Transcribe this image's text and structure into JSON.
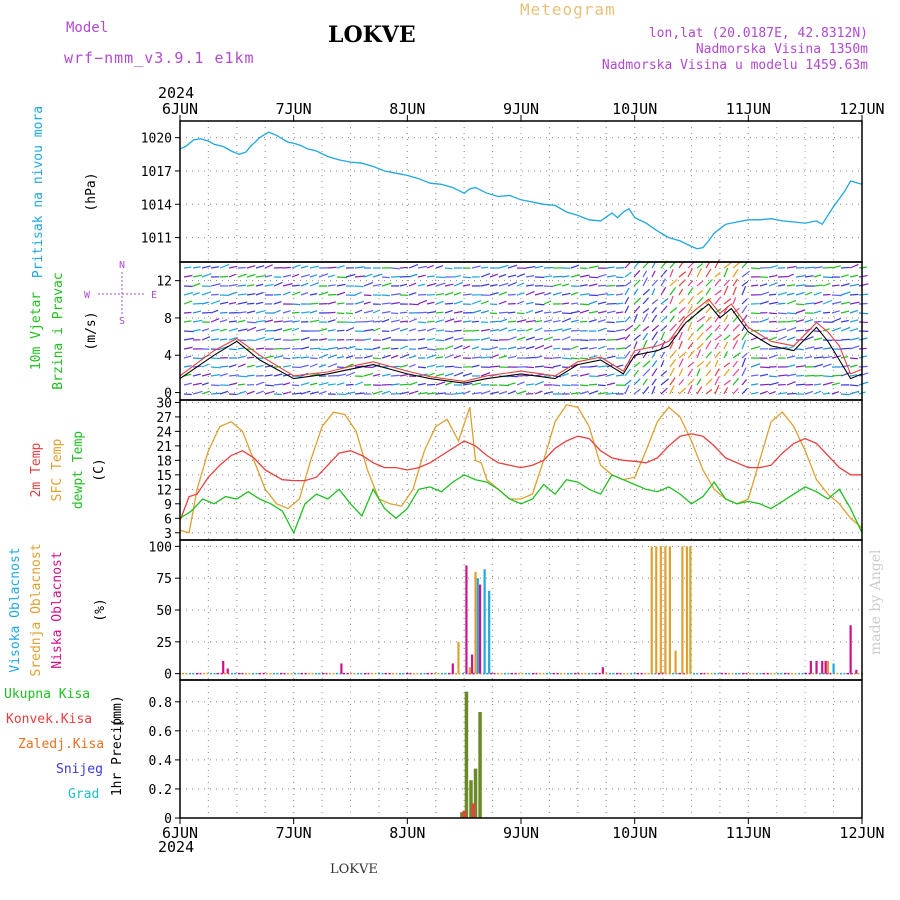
{
  "header": {
    "model_label": "Model",
    "model_name": "wrf−nmm_v3.9.1  e1km",
    "title": "LOKVE",
    "meteogram": "Meteogram",
    "lonlat": "lon,lat (20.0187E, 42.8312N)",
    "elevation": "Nadmorska Visina 1350m",
    "model_elevation": "Nadmorska Visina u modelu 1459.63m",
    "footer_title": "LOKVE",
    "watermark": "made by Angel"
  },
  "colors": {
    "pressure": "#1fa8e0",
    "t2m": "#e84040",
    "tsfc": "#e0a030",
    "dewpt": "#20c020",
    "cloud_high": "#1fa8e0",
    "cloud_mid": "#e0a030",
    "cloud_low": "#d0108a",
    "precip_total": "#6a8a28",
    "precip_conv": "#e84040",
    "magenta_text": "#b04ad0"
  },
  "time_axis": {
    "year": "2024",
    "days": [
      "6JUN",
      "7JUN",
      "8JUN",
      "9JUN",
      "10JUN",
      "11JUN",
      "12JUN"
    ]
  },
  "chart_data": [
    {
      "type": "line",
      "id": "pressure",
      "ylabel_lines": [
        "Pritisak na nivou mora"
      ],
      "unit": "(hPa)",
      "yticks": [
        1011,
        1014,
        1017,
        1020
      ],
      "ylim": [
        1008.8,
        1021.5
      ],
      "grid": true,
      "series": [
        {
          "color": "#1fa8e0",
          "x": [
            0,
            0.05,
            0.12,
            0.18,
            0.25,
            0.3,
            0.38,
            0.45,
            0.52,
            0.58,
            0.62,
            0.7,
            0.78,
            0.85,
            0.9,
            0.95,
            1.0,
            1.06,
            1.12,
            1.2,
            1.3,
            1.4,
            1.5,
            1.6,
            1.7,
            1.8,
            1.9,
            2.0,
            2.1,
            2.2,
            2.3,
            2.4,
            2.5,
            2.55,
            2.6,
            2.7,
            2.8,
            2.9,
            3.0,
            3.1,
            3.2,
            3.3,
            3.4,
            3.5,
            3.6,
            3.7,
            3.8,
            3.85,
            3.9,
            3.95,
            4.0,
            4.1,
            4.2,
            4.3,
            4.4,
            4.5,
            4.55,
            4.6,
            4.65,
            4.7,
            4.8,
            4.9,
            5.0,
            5.1,
            5.2,
            5.3,
            5.4,
            5.5,
            5.6,
            5.65,
            5.7,
            5.75,
            5.8,
            5.85,
            5.9,
            6.0
          ],
          "y": [
            1019.0,
            1019.2,
            1019.8,
            1019.9,
            1019.7,
            1019.4,
            1019.2,
            1018.8,
            1018.5,
            1018.7,
            1019.2,
            1020.0,
            1020.5,
            1020.2,
            1019.9,
            1019.6,
            1019.5,
            1019.3,
            1019.0,
            1018.8,
            1018.3,
            1018.0,
            1017.8,
            1017.7,
            1017.4,
            1017.0,
            1016.8,
            1016.6,
            1016.3,
            1015.9,
            1015.8,
            1015.5,
            1015.0,
            1015.4,
            1015.5,
            1015.0,
            1014.7,
            1014.8,
            1014.4,
            1014.2,
            1014.0,
            1013.9,
            1013.3,
            1013.0,
            1012.6,
            1012.5,
            1013.2,
            1012.8,
            1013.3,
            1013.6,
            1012.8,
            1012.3,
            1011.6,
            1011.0,
            1010.7,
            1010.2,
            1010.0,
            1010.1,
            1010.7,
            1011.4,
            1012.2,
            1012.4,
            1012.6,
            1012.6,
            1012.7,
            1012.5,
            1012.4,
            1012.3,
            1012.5,
            1012.2,
            1013.0,
            1013.8,
            1014.5,
            1015.2,
            1016.1,
            1015.8
          ]
        }
      ]
    },
    {
      "type": "line",
      "id": "wind",
      "ylabel_lines": [
        "10m Vjetar",
        "Brzina i Pravac"
      ],
      "unit": "(m/s)",
      "compass": {
        "north": "N",
        "west": "W",
        "east": "E",
        "south": "S"
      },
      "yticks": [
        0,
        4,
        8,
        12
      ],
      "ylim": [
        -0.8,
        14
      ],
      "grid": true,
      "series": [
        {
          "color": "#000000",
          "x": [
            0,
            0.3,
            0.5,
            0.7,
            1.0,
            1.3,
            1.5,
            1.7,
            2.0,
            2.2,
            2.5,
            2.7,
            3.0,
            3.3,
            3.5,
            3.7,
            3.9,
            4.0,
            4.2,
            4.3,
            4.45,
            4.55,
            4.65,
            4.75,
            4.85,
            5.0,
            5.2,
            5.4,
            5.6,
            5.7,
            5.8,
            5.9,
            6.0
          ],
          "y": [
            1.5,
            4.0,
            5.5,
            3.5,
            1.5,
            2.0,
            2.5,
            3.0,
            2.0,
            1.5,
            1.0,
            1.5,
            2.0,
            1.5,
            3.0,
            3.5,
            2.0,
            4.0,
            4.5,
            5.0,
            7.5,
            8.5,
            9.5,
            8.0,
            9.0,
            6.5,
            5.0,
            4.5,
            7.0,
            5.5,
            3.5,
            1.5,
            2.0
          ]
        },
        {
          "color": "#e84040",
          "x": [
            0,
            0.3,
            0.5,
            0.7,
            1.0,
            1.3,
            1.5,
            1.7,
            2.0,
            2.2,
            2.5,
            2.7,
            3.0,
            3.3,
            3.5,
            3.7,
            3.9,
            4.0,
            4.2,
            4.3,
            4.45,
            4.55,
            4.65,
            4.75,
            4.85,
            5.0,
            5.2,
            5.4,
            5.6,
            5.7,
            5.8,
            5.9,
            6.0
          ],
          "y": [
            1.8,
            4.5,
            5.8,
            4.0,
            1.8,
            2.2,
            2.8,
            3.3,
            2.3,
            1.7,
            1.2,
            1.8,
            2.3,
            1.8,
            3.3,
            3.8,
            2.3,
            4.5,
            5.0,
            5.5,
            8.0,
            9.0,
            10.0,
            8.5,
            9.5,
            7.0,
            5.5,
            5.0,
            7.5,
            6.5,
            5.0,
            2.0,
            2.5
          ]
        }
      ]
    },
    {
      "type": "line",
      "id": "temperature",
      "ylabel_lines": [
        "2m Temp",
        "SFC Temp",
        "dewpt Temp"
      ],
      "unit": "(C)",
      "yticks": [
        3,
        6,
        9,
        12,
        15,
        18,
        21,
        24,
        27,
        30
      ],
      "ylim": [
        1.5,
        30.5
      ],
      "grid": true,
      "series": [
        {
          "name": "2m Temp",
          "color": "#e84040",
          "x": [
            0,
            0.08,
            0.15,
            0.25,
            0.35,
            0.45,
            0.55,
            0.65,
            0.75,
            0.9,
            1.0,
            1.1,
            1.2,
            1.3,
            1.4,
            1.5,
            1.6,
            1.7,
            1.8,
            1.9,
            2.0,
            2.1,
            2.2,
            2.3,
            2.4,
            2.5,
            2.6,
            2.7,
            2.8,
            2.9,
            3.0,
            3.1,
            3.2,
            3.3,
            3.4,
            3.5,
            3.6,
            3.7,
            3.8,
            3.9,
            4.0,
            4.1,
            4.2,
            4.3,
            4.4,
            4.5,
            4.6,
            4.7,
            4.8,
            4.9,
            5.0,
            5.1,
            5.2,
            5.3,
            5.4,
            5.5,
            5.6,
            5.7,
            5.8,
            5.9,
            6.0
          ],
          "y": [
            5.5,
            10.5,
            11.0,
            14.5,
            17.0,
            19.0,
            20.0,
            18.5,
            16.0,
            14.0,
            13.8,
            13.8,
            14.5,
            17.0,
            19.5,
            20.0,
            19.0,
            17.5,
            16.5,
            16.5,
            16.0,
            16.5,
            17.5,
            19.0,
            20.5,
            22.0,
            21.0,
            19.0,
            17.5,
            17.0,
            16.5,
            17.0,
            18.0,
            20.5,
            22.0,
            23.0,
            22.5,
            20.0,
            18.5,
            18.0,
            17.8,
            17.5,
            18.5,
            21.0,
            23.0,
            23.5,
            23.0,
            21.0,
            18.5,
            17.5,
            16.5,
            16.5,
            17.0,
            19.5,
            21.5,
            22.5,
            21.5,
            19.0,
            16.5,
            15.0,
            15.0
          ]
        },
        {
          "name": "SFC Temp",
          "color": "#e0a030",
          "x": [
            0,
            0.08,
            0.15,
            0.25,
            0.35,
            0.45,
            0.55,
            0.65,
            0.75,
            0.85,
            0.95,
            1.05,
            1.15,
            1.25,
            1.35,
            1.45,
            1.55,
            1.65,
            1.75,
            1.85,
            1.95,
            2.05,
            2.15,
            2.25,
            2.35,
            2.45,
            2.55,
            2.6,
            2.65,
            2.7,
            2.8,
            2.9,
            3.0,
            3.1,
            3.2,
            3.3,
            3.4,
            3.5,
            3.6,
            3.7,
            3.8,
            3.9,
            4.0,
            4.1,
            4.2,
            4.3,
            4.4,
            4.5,
            4.6,
            4.7,
            4.8,
            4.9,
            5.0,
            5.1,
            5.2,
            5.3,
            5.4,
            5.5,
            5.6,
            5.7,
            5.8,
            5.9,
            6.0
          ],
          "y": [
            3.5,
            3.0,
            12.0,
            20.0,
            25.0,
            26.0,
            24.0,
            18.0,
            12.0,
            9.0,
            8.0,
            10.0,
            18.0,
            25.0,
            28.0,
            27.5,
            24.0,
            16.0,
            10.0,
            9.0,
            8.5,
            12.0,
            20.0,
            25.0,
            26.5,
            22.0,
            29.0,
            18.0,
            17.5,
            14.0,
            12.0,
            10.0,
            10.0,
            11.0,
            18.0,
            26.0,
            29.5,
            29.0,
            25.0,
            17.0,
            15.0,
            14.0,
            14.5,
            20.0,
            26.0,
            29.0,
            27.0,
            22.0,
            16.0,
            12.0,
            10.0,
            9.0,
            10.0,
            18.0,
            26.0,
            28.0,
            25.0,
            20.0,
            14.0,
            11.0,
            9.0,
            6.0,
            4.0
          ]
        },
        {
          "name": "dewpt Temp",
          "color": "#20c020",
          "x": [
            0,
            0.1,
            0.2,
            0.3,
            0.4,
            0.5,
            0.6,
            0.7,
            0.8,
            0.9,
            1.0,
            1.1,
            1.2,
            1.3,
            1.4,
            1.5,
            1.6,
            1.7,
            1.8,
            1.9,
            2.0,
            2.1,
            2.2,
            2.3,
            2.4,
            2.5,
            2.6,
            2.7,
            2.8,
            2.9,
            3.0,
            3.1,
            3.2,
            3.3,
            3.4,
            3.5,
            3.6,
            3.7,
            3.8,
            3.9,
            4.0,
            4.1,
            4.2,
            4.3,
            4.4,
            4.5,
            4.6,
            4.7,
            4.8,
            4.9,
            5.0,
            5.1,
            5.2,
            5.3,
            5.4,
            5.5,
            5.6,
            5.7,
            5.8,
            5.9,
            6.0
          ],
          "y": [
            6.0,
            7.5,
            10.0,
            9.0,
            10.5,
            10.0,
            11.5,
            10.0,
            9.0,
            7.5,
            3.0,
            9.0,
            11.0,
            10.0,
            12.0,
            9.0,
            6.5,
            12.0,
            8.0,
            6.0,
            8.0,
            12.0,
            12.5,
            11.5,
            13.5,
            15.0,
            14.0,
            13.5,
            12.0,
            10.0,
            9.0,
            10.0,
            13.0,
            11.0,
            14.0,
            13.5,
            12.0,
            11.0,
            15.0,
            14.0,
            13.0,
            12.0,
            11.5,
            12.5,
            11.0,
            9.0,
            10.5,
            13.5,
            10.0,
            9.0,
            9.5,
            9.0,
            8.0,
            9.5,
            11.0,
            12.5,
            11.5,
            10.0,
            12.0,
            8.0,
            3.0
          ]
        }
      ]
    },
    {
      "type": "bar",
      "id": "clouds",
      "ylabel_lines": [
        "Visoka Oblacnost",
        "Srednja Oblacnost",
        "Niska Oblacnost"
      ],
      "unit": "(%)",
      "yticks": [
        0,
        25,
        50,
        75,
        100
      ],
      "ylim": [
        -5,
        105
      ],
      "grid": true,
      "series": [
        {
          "name": "Visoka Oblacnost",
          "color": "#1fa8e0",
          "x": [
            2.62,
            2.68,
            2.72,
            5.75
          ],
          "values": [
            75,
            82,
            65,
            8
          ]
        },
        {
          "name": "Srednja Oblacnost",
          "color": "#e0a030",
          "x": [
            2.45,
            2.55,
            2.6,
            4.15,
            4.19,
            4.23,
            4.27,
            4.31,
            4.36,
            4.42,
            4.46,
            4.49,
            5.7
          ],
          "values": [
            25,
            5,
            80,
            100,
            100,
            100,
            100,
            100,
            18,
            100,
            100,
            100,
            10
          ]
        },
        {
          "name": "Niska Oblacnost",
          "color": "#d0108a",
          "x": [
            0.38,
            0.42,
            1.42,
            2.4,
            2.52,
            2.57,
            2.64,
            3.72,
            5.55,
            5.6,
            5.65,
            5.68,
            5.9,
            5.95
          ],
          "values": [
            10,
            4,
            8,
            8,
            85,
            15,
            70,
            5,
            10,
            10,
            10,
            10,
            38,
            3
          ]
        }
      ]
    },
    {
      "type": "bar",
      "id": "precip",
      "ylabel_lines": [
        "1hr Precip"
      ],
      "unit": "(mm)",
      "legend": [
        "Ukupna Kisa",
        "Konvek.Kisa",
        "Zaledj.Kisa",
        "Snijeg",
        "Grad"
      ],
      "legend_colors": [
        "#20c020",
        "#e84040",
        "#e87020",
        "#3838e0",
        "#20c0c0"
      ],
      "yticks": [
        0,
        0.2,
        0.4,
        0.6,
        0.8
      ],
      "ylim": [
        0,
        0.95
      ],
      "grid": true,
      "series": [
        {
          "name": "Ukupna Kisa",
          "color": "#6a8a28",
          "x": [
            2.48,
            2.52,
            2.56,
            2.6,
            2.64
          ],
          "values": [
            0.04,
            0.87,
            0.26,
            0.34,
            0.73
          ]
        },
        {
          "name": "Konvek.Kisa",
          "color": "#e84040",
          "x": [
            2.5,
            2.58
          ],
          "values": [
            0.05,
            0.1
          ]
        }
      ]
    }
  ]
}
